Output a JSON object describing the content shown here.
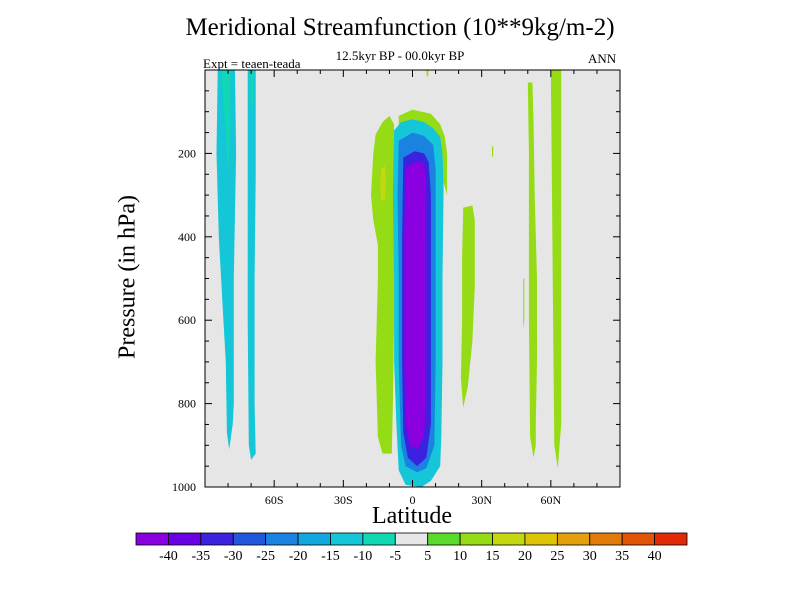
{
  "chart_data": {
    "type": "contour",
    "title": "Meridional Streamfunction (10**9kg/m-2)",
    "subtitle": "12.5kyr BP - 00.0kyr BP",
    "left_label": "Expt = teaen-teada",
    "right_label": "ANN",
    "xlabel": "Latitude",
    "ylabel": "Pressure (in hPa)",
    "xlim": [
      -90,
      90
    ],
    "ylim": [
      1000,
      0
    ],
    "x_ticks": [
      {
        "value": -60,
        "label": "60S"
      },
      {
        "value": -30,
        "label": "30S"
      },
      {
        "value": 0,
        "label": "0"
      },
      {
        "value": 30,
        "label": "30N"
      },
      {
        "value": 60,
        "label": "60N"
      }
    ],
    "y_ticks": [
      {
        "value": 200,
        "label": "200"
      },
      {
        "value": 400,
        "label": "400"
      },
      {
        "value": 600,
        "label": "600"
      },
      {
        "value": 800,
        "label": "800"
      },
      {
        "value": 1000,
        "label": "1000"
      }
    ],
    "background_fill": "#e6e6e6",
    "colorbar": {
      "labels": [
        "-40",
        "-35",
        "-30",
        "-25",
        "-20",
        "-15",
        "-10",
        "-5",
        "5",
        "10",
        "15",
        "20",
        "25",
        "30",
        "35",
        "40"
      ],
      "colors": [
        "#8a00e0",
        "#6a00e4",
        "#3a22df",
        "#2256dc",
        "#1a82e0",
        "#12a8de",
        "#14c6d8",
        "#10d8b4",
        "#e6e6e6",
        "#5ada2a",
        "#96dc16",
        "#c4d810",
        "#dec406",
        "#e4a00c",
        "#e27a0a",
        "#e25406",
        "#e02a06"
      ]
    },
    "regions": [
      {
        "id": "sh-west-strip",
        "level": "-10",
        "points": [
          [
            -84.5,
            0
          ],
          [
            -77,
            0
          ],
          [
            -76.5,
            200
          ],
          [
            -77.5,
            500
          ],
          [
            -77.5,
            800
          ],
          [
            -78,
            850
          ],
          [
            -79.5,
            910
          ],
          [
            -80.5,
            870
          ],
          [
            -81,
            700
          ],
          [
            -82,
            600
          ],
          [
            -84,
            400
          ],
          [
            -85,
            200
          ]
        ]
      },
      {
        "id": "sh-west-core",
        "level": "-5",
        "points": [
          [
            -83,
            0
          ],
          [
            -79,
            0
          ],
          [
            -79,
            150
          ],
          [
            -80,
            250
          ],
          [
            -81,
            150
          ]
        ]
      },
      {
        "id": "sh-east-strip",
        "level": "-10",
        "points": [
          [
            -71.5,
            0
          ],
          [
            -68,
            0
          ],
          [
            -68,
            250
          ],
          [
            -68.5,
            500
          ],
          [
            -68.5,
            800
          ],
          [
            -68,
            920
          ],
          [
            -70,
            935
          ],
          [
            -71,
            900
          ],
          [
            -71.5,
            600
          ]
        ]
      },
      {
        "id": "sh-east-core",
        "level": "-5",
        "points": [
          [
            -70.5,
            0
          ],
          [
            -69,
            0
          ],
          [
            -69,
            80
          ],
          [
            -70,
            110
          ]
        ]
      },
      {
        "id": "green-sh-strip",
        "level": "10",
        "points": [
          [
            -16,
            155
          ],
          [
            -13,
            125
          ],
          [
            -10,
            110
          ],
          [
            -8,
            130
          ],
          [
            -8,
            220
          ],
          [
            -8,
            400
          ],
          [
            -8,
            600
          ],
          [
            -8.5,
            800
          ],
          [
            -9,
            920
          ],
          [
            -13,
            920
          ],
          [
            -15,
            880
          ],
          [
            -16,
            700
          ],
          [
            -15,
            500
          ],
          [
            -15,
            420
          ],
          [
            -17,
            360
          ],
          [
            -18,
            300
          ],
          [
            -17,
            200
          ]
        ]
      },
      {
        "id": "green-sh-core",
        "level": "15",
        "points": [
          [
            -13.5,
            238
          ],
          [
            -12,
            228
          ],
          [
            -11.5,
            270
          ],
          [
            -12,
            310
          ],
          [
            -13.5,
            315
          ],
          [
            -14,
            275
          ]
        ]
      },
      {
        "id": "green-cap",
        "level": "10",
        "points": [
          [
            -6,
            110
          ],
          [
            0,
            95
          ],
          [
            8,
            105
          ],
          [
            12,
            130
          ],
          [
            14,
            160
          ],
          [
            15,
            200
          ],
          [
            15,
            300
          ],
          [
            13,
            260
          ],
          [
            10,
            220
          ],
          [
            5,
            205
          ],
          [
            -4,
            210
          ],
          [
            -6,
            180
          ]
        ]
      },
      {
        "id": "cyan-tropical",
        "level": "-10",
        "points": [
          [
            -8,
            145
          ],
          [
            -5,
            125
          ],
          [
            0,
            118
          ],
          [
            5,
            125
          ],
          [
            9,
            140
          ],
          [
            12,
            160
          ],
          [
            13,
            200
          ],
          [
            13.5,
            280
          ],
          [
            13,
            500
          ],
          [
            13,
            700
          ],
          [
            12.5,
            880
          ],
          [
            12,
            950
          ],
          [
            8,
            985
          ],
          [
            4,
            1000
          ],
          [
            -3,
            995
          ],
          [
            -6,
            960
          ],
          [
            -7,
            850
          ],
          [
            -8,
            700
          ],
          [
            -8,
            500
          ],
          [
            -8.5,
            300
          ]
        ]
      },
      {
        "id": "lightblue-tropical",
        "level": "-20",
        "points": [
          [
            -6,
            170
          ],
          [
            0,
            150
          ],
          [
            5,
            158
          ],
          [
            9,
            180
          ],
          [
            10,
            240
          ],
          [
            10,
            500
          ],
          [
            10,
            700
          ],
          [
            9.5,
            900
          ],
          [
            6,
            955
          ],
          [
            2,
            965
          ],
          [
            -3,
            950
          ],
          [
            -5,
            900
          ],
          [
            -6,
            700
          ],
          [
            -6,
            500
          ],
          [
            -6.5,
            300
          ]
        ]
      },
      {
        "id": "blue-tropical",
        "level": "-30",
        "points": [
          [
            -4,
            210
          ],
          [
            1,
            195
          ],
          [
            5,
            200
          ],
          [
            7,
            220
          ],
          [
            8,
            300
          ],
          [
            8,
            600
          ],
          [
            8,
            850
          ],
          [
            6,
            930
          ],
          [
            2,
            950
          ],
          [
            -2,
            930
          ],
          [
            -4,
            870
          ],
          [
            -4.5,
            700
          ],
          [
            -4.5,
            400
          ]
        ]
      },
      {
        "id": "purple-core",
        "level": "-40",
        "points": [
          [
            -3,
            235
          ],
          [
            2,
            218
          ],
          [
            5,
            225
          ],
          [
            6,
            260
          ],
          [
            6,
            500
          ],
          [
            6,
            800
          ],
          [
            5,
            880
          ],
          [
            2,
            910
          ],
          [
            -1,
            900
          ],
          [
            -3,
            850
          ],
          [
            -3.5,
            700
          ],
          [
            -3.5,
            400
          ]
        ]
      },
      {
        "id": "green-nh-blob",
        "level": "10",
        "points": [
          [
            22,
            330
          ],
          [
            26,
            325
          ],
          [
            27,
            360
          ],
          [
            27,
            520
          ],
          [
            26,
            650
          ],
          [
            24,
            760
          ],
          [
            22,
            810
          ],
          [
            21,
            740
          ],
          [
            21.5,
            600
          ],
          [
            21.5,
            450
          ]
        ]
      },
      {
        "id": "green-nh-thin-1",
        "level": "10",
        "points": [
          [
            34.5,
            180
          ],
          [
            35,
            185
          ],
          [
            35,
            205
          ],
          [
            34.5,
            210
          ]
        ]
      },
      {
        "id": "green-nh-thin-2",
        "level": "10",
        "points": [
          [
            48,
            500
          ],
          [
            48.5,
            500
          ],
          [
            48.5,
            600
          ],
          [
            48,
            620
          ]
        ]
      },
      {
        "id": "green-nh-strip",
        "level": "10",
        "points": [
          [
            50,
            30
          ],
          [
            52,
            30
          ],
          [
            52.5,
            120
          ],
          [
            53,
            300
          ],
          [
            54,
            500
          ],
          [
            54,
            700
          ],
          [
            53.5,
            850
          ],
          [
            53.5,
            900
          ],
          [
            52.5,
            930
          ],
          [
            51,
            880
          ],
          [
            50.5,
            600
          ],
          [
            50.5,
            200
          ]
        ]
      },
      {
        "id": "green-nh-east-strip",
        "level": "10",
        "points": [
          [
            60,
            0
          ],
          [
            64.5,
            0
          ],
          [
            64.5,
            200
          ],
          [
            64.5,
            500
          ],
          [
            64.5,
            850
          ],
          [
            63,
            955
          ],
          [
            61.5,
            900
          ],
          [
            61,
            600
          ],
          [
            60.5,
            300
          ]
        ]
      },
      {
        "id": "green-top-sliver",
        "level": "10",
        "points": [
          [
            6,
            0
          ],
          [
            7,
            0
          ],
          [
            6.8,
            15
          ],
          [
            6.2,
            15
          ]
        ]
      }
    ]
  }
}
